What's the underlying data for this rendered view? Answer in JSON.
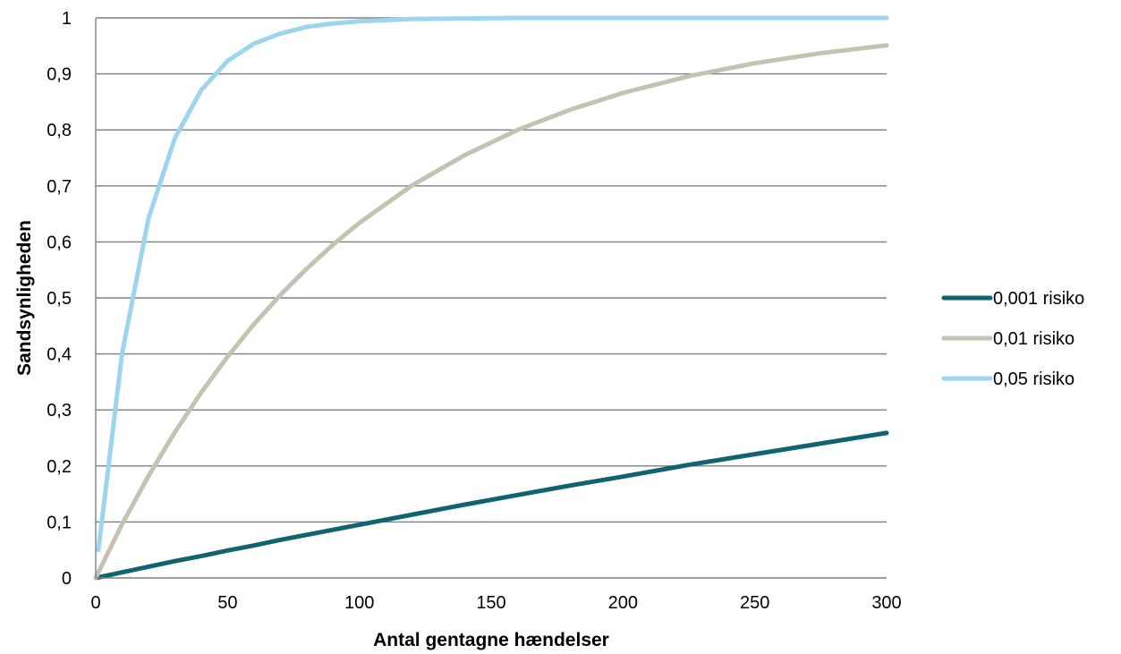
{
  "chart_data": {
    "type": "line",
    "title": "",
    "xlabel": "Antal gentagne hændelser",
    "ylabel": "Sandsynligheden",
    "xlim": [
      0,
      300
    ],
    "ylim": [
      0,
      1
    ],
    "x_ticks": [
      0,
      50,
      100,
      150,
      200,
      250,
      300
    ],
    "x_tick_labels": [
      "0",
      "50",
      "100",
      "150",
      "200",
      "250",
      "300"
    ],
    "y_ticks": [
      0,
      0.1,
      0.2,
      0.3,
      0.4,
      0.5,
      0.6,
      0.7,
      0.8,
      0.9,
      1
    ],
    "y_tick_labels": [
      "0",
      "0,1",
      "0,2",
      "0,3",
      "0,4",
      "0,5",
      "0,6",
      "0,7",
      "0,8",
      "0,9",
      "1"
    ],
    "grid": true,
    "legend_position": "right",
    "x": [
      1,
      10,
      20,
      30,
      40,
      50,
      60,
      70,
      80,
      90,
      100,
      120,
      140,
      160,
      180,
      200,
      225,
      250,
      275,
      300
    ],
    "series": [
      {
        "name": "0,001 risiko",
        "color": "#0f6470",
        "values": [
          0.001,
          0.01,
          0.02,
          0.03,
          0.039,
          0.049,
          0.058,
          0.068,
          0.077,
          0.086,
          0.095,
          0.113,
          0.131,
          0.148,
          0.165,
          0.181,
          0.202,
          0.221,
          0.24,
          0.259
        ]
      },
      {
        "name": "0,01 risiko",
        "color": "#c4c3b1",
        "values": [
          0.01,
          0.096,
          0.182,
          0.26,
          0.331,
          0.395,
          0.453,
          0.505,
          0.552,
          0.595,
          0.634,
          0.701,
          0.755,
          0.8,
          0.836,
          0.866,
          0.896,
          0.919,
          0.937,
          0.951
        ]
      },
      {
        "name": "0,05 risiko",
        "color": "#9dd5ef",
        "values": [
          0.05,
          0.401,
          0.642,
          0.785,
          0.871,
          0.923,
          0.954,
          0.972,
          0.984,
          0.99,
          0.994,
          0.998,
          0.999,
          1.0,
          1.0,
          1.0,
          1.0,
          1.0,
          1.0,
          1.0
        ]
      }
    ]
  }
}
